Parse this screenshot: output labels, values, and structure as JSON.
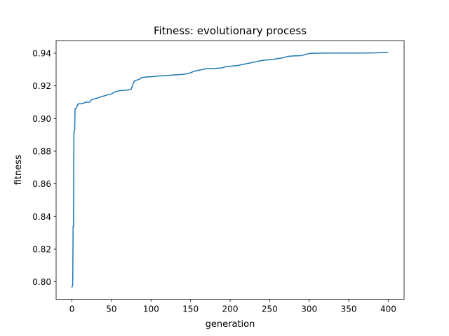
{
  "chart_data": {
    "type": "line",
    "title": "Fitness: evolutionary process",
    "xlabel": "generation",
    "ylabel": "fitness",
    "xlim": [
      -20,
      420
    ],
    "ylim": [
      0.7893,
      0.9477
    ],
    "xticks": [
      0,
      50,
      100,
      150,
      200,
      250,
      300,
      350,
      400
    ],
    "yticks": [
      0.8,
      0.82,
      0.84,
      0.86,
      0.88,
      0.9,
      0.92,
      0.94
    ],
    "ytick_labels": [
      "0.80",
      "0.82",
      "0.84",
      "0.86",
      "0.88",
      "0.90",
      "0.92",
      "0.94"
    ],
    "grid": false,
    "series": [
      {
        "color": "#1f77b4",
        "points": [
          [
            0,
            0.7965
          ],
          [
            1,
            0.7985
          ],
          [
            1.5,
            0.834
          ],
          [
            2,
            0.834
          ],
          [
            2.5,
            0.892
          ],
          [
            3,
            0.892
          ],
          [
            3.5,
            0.893
          ],
          [
            4,
            0.906
          ],
          [
            5,
            0.906
          ],
          [
            6,
            0.907
          ],
          [
            7,
            0.908
          ],
          [
            8,
            0.909
          ],
          [
            12,
            0.909
          ],
          [
            15,
            0.9095
          ],
          [
            18,
            0.91
          ],
          [
            22,
            0.91
          ],
          [
            25,
            0.9115
          ],
          [
            28,
            0.912
          ],
          [
            32,
            0.9125
          ],
          [
            35,
            0.913
          ],
          [
            38,
            0.9135
          ],
          [
            42,
            0.914
          ],
          [
            45,
            0.9145
          ],
          [
            50,
            0.915
          ],
          [
            55,
            0.9165
          ],
          [
            60,
            0.917
          ],
          [
            65,
            0.9172
          ],
          [
            72,
            0.9175
          ],
          [
            75,
            0.918
          ],
          [
            77,
            0.921
          ],
          [
            79,
            0.923
          ],
          [
            82,
            0.9235
          ],
          [
            85,
            0.924
          ],
          [
            88,
            0.925
          ],
          [
            95,
            0.9255
          ],
          [
            100,
            0.9255
          ],
          [
            110,
            0.926
          ],
          [
            120,
            0.9263
          ],
          [
            130,
            0.9267
          ],
          [
            140,
            0.927
          ],
          [
            147,
            0.9275
          ],
          [
            150,
            0.928
          ],
          [
            155,
            0.929
          ],
          [
            160,
            0.9295
          ],
          [
            165,
            0.93
          ],
          [
            170,
            0.9305
          ],
          [
            180,
            0.9306
          ],
          [
            190,
            0.931
          ],
          [
            195,
            0.9318
          ],
          [
            200,
            0.932
          ],
          [
            210,
            0.9325
          ],
          [
            215,
            0.933
          ],
          [
            220,
            0.9335
          ],
          [
            225,
            0.934
          ],
          [
            230,
            0.9345
          ],
          [
            235,
            0.935
          ],
          [
            240,
            0.9355
          ],
          [
            245,
            0.9358
          ],
          [
            250,
            0.936
          ],
          [
            255,
            0.9362
          ],
          [
            260,
            0.9367
          ],
          [
            265,
            0.937
          ],
          [
            270,
            0.9375
          ],
          [
            272,
            0.938
          ],
          [
            280,
            0.9383
          ],
          [
            290,
            0.9385
          ],
          [
            295,
            0.9392
          ],
          [
            300,
            0.9398
          ],
          [
            310,
            0.94
          ],
          [
            330,
            0.9401
          ],
          [
            350,
            0.9401
          ],
          [
            370,
            0.9401
          ],
          [
            385,
            0.9402
          ],
          [
            390,
            0.9404
          ],
          [
            400,
            0.9404
          ]
        ]
      }
    ]
  }
}
